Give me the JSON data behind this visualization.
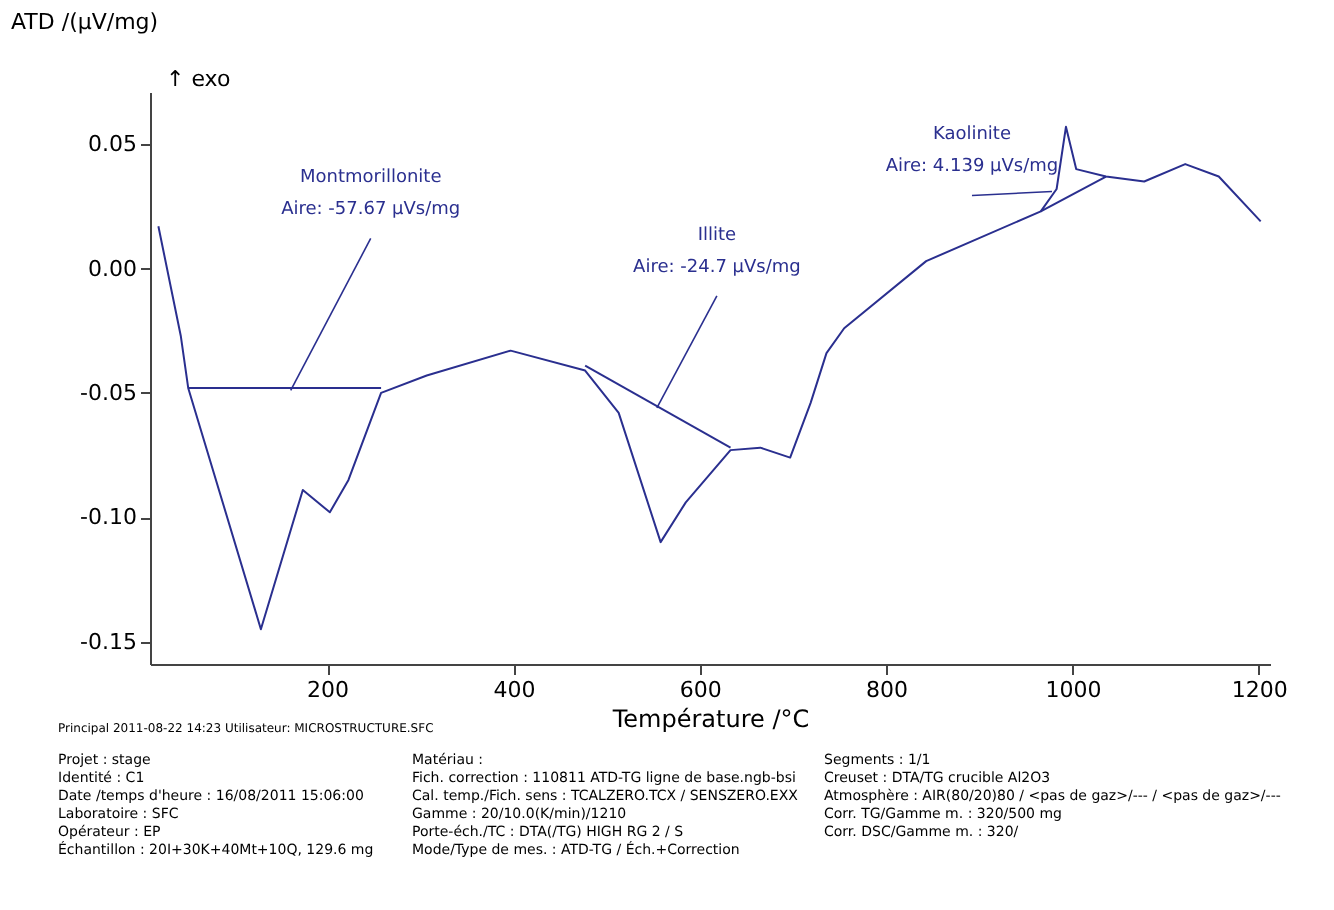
{
  "chart_data": {
    "type": "line",
    "xlabel": "Température /°C",
    "ylabel": "ATD /(µV/mg)",
    "xlim": [
      10,
      1212
    ],
    "xticks": [
      200,
      400,
      600,
      800,
      1000,
      1200
    ],
    "ylim": [
      -0.159,
      0.071
    ],
    "yticks": [
      {
        "value": 0.05,
        "label": "0.05"
      },
      {
        "value": 0,
        "label": "0.00"
      },
      {
        "value": -0.05,
        "label": "-0.05"
      },
      {
        "value": -0.1,
        "label": "-0.10"
      },
      {
        "value": -0.15,
        "label": "-0.15"
      }
    ],
    "grid": false,
    "line_style": "solid",
    "series": [
      {
        "color": "#2a2f8f",
        "x": [
          19,
          43,
          51,
          129,
          174,
          203,
          223,
          258,
          307,
          397,
          477,
          513,
          558,
          585,
          633,
          665,
          697,
          719,
          736,
          755,
          843,
          966,
          983,
          993,
          1004,
          1036,
          1077,
          1121,
          1157,
          1202
        ],
        "values": [
          0.017,
          -0.027,
          -0.048,
          -0.145,
          -0.089,
          -0.098,
          -0.085,
          -0.05,
          -0.043,
          -0.033,
          -0.041,
          -0.058,
          -0.11,
          -0.094,
          -0.073,
          -0.072,
          -0.076,
          -0.054,
          -0.034,
          -0.024,
          0.003,
          0.023,
          0.032,
          0.057,
          0.04,
          0.037,
          0.035,
          0.042,
          0.037,
          0.019
        ]
      },
      {
        "color": "#2a2f8f",
        "x": [
          51,
          258
        ],
        "values": [
          -0.048,
          -0.048
        ]
      },
      {
        "color": "#2a2f8f",
        "x": [
          477,
          633
        ],
        "values": [
          -0.039,
          -0.072
        ]
      },
      {
        "color": "#2a2f8f",
        "x": [
          966,
          1036
        ],
        "values": [
          0.023,
          0.037
        ]
      }
    ],
    "annotations": [
      {
        "text": "Montmorillonite\nAire: -57.67 µVs/mg",
        "x": 161,
        "y": -0.049
      },
      {
        "text": "Illite\nAire: -24.7 µVs/mg",
        "x": 554,
        "y": -0.056
      },
      {
        "text": "Kaolinite\nAire: 4.139 µVs/mg",
        "x": 978,
        "y": 0.031
      },
      "↑ exo",
      "Principal   2011-08-22 14:23     Utilisateur: MICROSTRUCTURE.SFC",
      "Projet :  stage",
      "Identité :  C1",
      "Date /temps d'heure :  16/08/2011 15:06:00",
      "Laboratoire :  SFC",
      "Opérateur :  EP",
      "Échantillon :  20I+30K+40Mt+10Q, 129.6 mg",
      "Matériau :",
      "Fich. correction :  110811 ATD-TG ligne de base.ngb-bsi",
      "Cal. temp./Fich. sens :  TCALZERO.TCX / SENSZERO.EXX",
      "Gamme :  20/10.0(K/min)/1210",
      "Porte-éch./TC :  DTA(/TG) HIGH RG 2 / S",
      "Mode/Type de mes. :  ATD-TG / Éch.+Correction",
      "Segments :  1/1",
      "Creuset :  DTA/TG crucible Al2O3",
      "Atmosphère :  AIR(80/20)80 / <pas de gaz>/--- / <pas de gaz>/---",
      "Corr. TG/Gamme m. :  320/500 mg",
      "Corr. DSC/Gamme m. :  320/"
    ]
  }
}
